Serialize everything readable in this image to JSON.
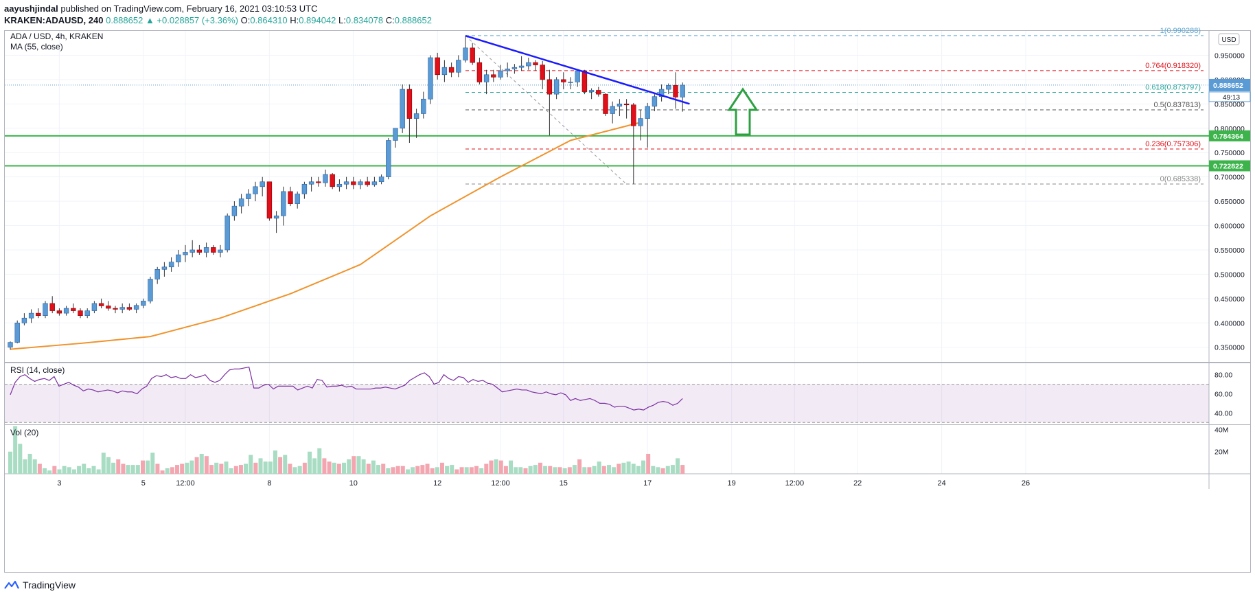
{
  "header": {
    "author": "aayushjindal",
    "published": "published on TradingView.com, February 16, 2021 03:10:53 UTC",
    "symbol": "KRAKEN:ADAUSD, 240",
    "last": "0.888652",
    "change": "▲ +0.028857 (+3.36%)",
    "o_label": "O:",
    "o": "0.864310",
    "h_label": "H:",
    "h": "0.894042",
    "l_label": "L:",
    "l": "0.834078",
    "c_label": "C:",
    "c": "0.888652"
  },
  "legend": {
    "pair": "ADA / USD, 4h, KRAKEN",
    "ma": "MA (55, close)",
    "rsi": "RSI (14, close)",
    "vol": "Vol (20)"
  },
  "currency_button": "USD",
  "footer": {
    "brand": "TradingView"
  },
  "colors": {
    "up": "#5b9bd5",
    "down": "#e0101a",
    "ma": "#f0932b",
    "trendline": "#1a1aff",
    "support": "#3cb44b",
    "rsi": "#7b2ea0",
    "vol_up": "#a8dcc3",
    "vol_down": "#f3a6b0",
    "arrow": "#2ea043"
  },
  "chart_data": {
    "type": "candlestick",
    "ylim": [
      0.32,
      1.0
    ],
    "y_ticks": [
      "0.350000",
      "0.400000",
      "0.450000",
      "0.500000",
      "0.550000",
      "0.600000",
      "0.650000",
      "0.700000",
      "0.750000",
      "0.800000",
      "0.850000",
      "0.900000",
      "0.950000"
    ],
    "price_label": "0.888652",
    "countdown": "49:13",
    "x_ticks": [
      {
        "i": 7,
        "label": "3"
      },
      {
        "i": 19,
        "label": "5"
      },
      {
        "i": 25,
        "label": "12:00"
      },
      {
        "i": 37,
        "label": "8"
      },
      {
        "i": 49,
        "label": "10"
      },
      {
        "i": 61,
        "label": "12"
      },
      {
        "i": 70,
        "label": "12:00"
      },
      {
        "i": 79,
        "label": "15"
      },
      {
        "i": 91,
        "label": "17"
      },
      {
        "i": 103,
        "label": "19"
      },
      {
        "i": 112,
        "label": "12:00"
      },
      {
        "i": 121,
        "label": "22"
      },
      {
        "i": 133,
        "label": "24"
      },
      {
        "i": 145,
        "label": "26"
      }
    ],
    "candles": [
      [
        0.35,
        0.362,
        0.345,
        0.36
      ],
      [
        0.36,
        0.405,
        0.358,
        0.4
      ],
      [
        0.4,
        0.42,
        0.395,
        0.41
      ],
      [
        0.41,
        0.428,
        0.4,
        0.42
      ],
      [
        0.42,
        0.43,
        0.41,
        0.415
      ],
      [
        0.415,
        0.445,
        0.41,
        0.44
      ],
      [
        0.44,
        0.455,
        0.42,
        0.425
      ],
      [
        0.425,
        0.43,
        0.415,
        0.42
      ],
      [
        0.42,
        0.435,
        0.415,
        0.43
      ],
      [
        0.43,
        0.44,
        0.42,
        0.425
      ],
      [
        0.425,
        0.43,
        0.41,
        0.415
      ],
      [
        0.415,
        0.43,
        0.41,
        0.425
      ],
      [
        0.425,
        0.445,
        0.42,
        0.44
      ],
      [
        0.44,
        0.45,
        0.43,
        0.435
      ],
      [
        0.435,
        0.445,
        0.425,
        0.43
      ],
      [
        0.43,
        0.435,
        0.42,
        0.428
      ],
      [
        0.428,
        0.44,
        0.42,
        0.432
      ],
      [
        0.432,
        0.44,
        0.425,
        0.428
      ],
      [
        0.428,
        0.44,
        0.42,
        0.436
      ],
      [
        0.436,
        0.45,
        0.43,
        0.445
      ],
      [
        0.445,
        0.495,
        0.44,
        0.49
      ],
      [
        0.49,
        0.515,
        0.48,
        0.51
      ],
      [
        0.51,
        0.525,
        0.495,
        0.515
      ],
      [
        0.515,
        0.535,
        0.505,
        0.525
      ],
      [
        0.525,
        0.55,
        0.515,
        0.54
      ],
      [
        0.54,
        0.56,
        0.525,
        0.545
      ],
      [
        0.545,
        0.57,
        0.535,
        0.55
      ],
      [
        0.55,
        0.56,
        0.54,
        0.545
      ],
      [
        0.545,
        0.565,
        0.535,
        0.555
      ],
      [
        0.555,
        0.56,
        0.54,
        0.545
      ],
      [
        0.545,
        0.56,
        0.535,
        0.55
      ],
      [
        0.55,
        0.625,
        0.545,
        0.62
      ],
      [
        0.62,
        0.65,
        0.61,
        0.64
      ],
      [
        0.64,
        0.665,
        0.625,
        0.655
      ],
      [
        0.655,
        0.675,
        0.64,
        0.665
      ],
      [
        0.665,
        0.69,
        0.65,
        0.68
      ],
      [
        0.68,
        0.7,
        0.66,
        0.69
      ],
      [
        0.69,
        0.69,
        0.61,
        0.615
      ],
      [
        0.615,
        0.63,
        0.585,
        0.62
      ],
      [
        0.62,
        0.68,
        0.6,
        0.67
      ],
      [
        0.67,
        0.68,
        0.64,
        0.645
      ],
      [
        0.645,
        0.67,
        0.635,
        0.665
      ],
      [
        0.665,
        0.69,
        0.655,
        0.685
      ],
      [
        0.685,
        0.7,
        0.67,
        0.69
      ],
      [
        0.69,
        0.7,
        0.68,
        0.688
      ],
      [
        0.688,
        0.715,
        0.68,
        0.705
      ],
      [
        0.705,
        0.708,
        0.675,
        0.68
      ],
      [
        0.68,
        0.695,
        0.67,
        0.685
      ],
      [
        0.685,
        0.7,
        0.675,
        0.69
      ],
      [
        0.69,
        0.7,
        0.675,
        0.684
      ],
      [
        0.684,
        0.695,
        0.675,
        0.69
      ],
      [
        0.69,
        0.7,
        0.68,
        0.684
      ],
      [
        0.684,
        0.7,
        0.68,
        0.69
      ],
      [
        0.69,
        0.705,
        0.685,
        0.7
      ],
      [
        0.7,
        0.78,
        0.695,
        0.775
      ],
      [
        0.775,
        0.8,
        0.76,
        0.8
      ],
      [
        0.8,
        0.89,
        0.79,
        0.88
      ],
      [
        0.88,
        0.89,
        0.77,
        0.82
      ],
      [
        0.82,
        0.84,
        0.78,
        0.83
      ],
      [
        0.83,
        0.875,
        0.82,
        0.86
      ],
      [
        0.86,
        0.95,
        0.85,
        0.945
      ],
      [
        0.945,
        0.955,
        0.9,
        0.91
      ],
      [
        0.91,
        0.94,
        0.895,
        0.925
      ],
      [
        0.925,
        0.935,
        0.905,
        0.915
      ],
      [
        0.915,
        0.95,
        0.905,
        0.94
      ],
      [
        0.94,
        0.99,
        0.935,
        0.965
      ],
      [
        0.965,
        0.975,
        0.93,
        0.935
      ],
      [
        0.935,
        0.945,
        0.89,
        0.895
      ],
      [
        0.895,
        0.92,
        0.87,
        0.91
      ],
      [
        0.91,
        0.92,
        0.895,
        0.905
      ],
      [
        0.905,
        0.93,
        0.9,
        0.918
      ],
      [
        0.918,
        0.935,
        0.905,
        0.922
      ],
      [
        0.922,
        0.932,
        0.912,
        0.925
      ],
      [
        0.925,
        0.948,
        0.918,
        0.928
      ],
      [
        0.928,
        0.945,
        0.92,
        0.935
      ],
      [
        0.935,
        0.94,
        0.918,
        0.93
      ],
      [
        0.93,
        0.938,
        0.88,
        0.9
      ],
      [
        0.9,
        0.92,
        0.785,
        0.87
      ],
      [
        0.87,
        0.905,
        0.86,
        0.9
      ],
      [
        0.9,
        0.915,
        0.88,
        0.895
      ],
      [
        0.895,
        0.905,
        0.88,
        0.895
      ],
      [
        0.895,
        0.92,
        0.885,
        0.918
      ],
      [
        0.918,
        0.92,
        0.87,
        0.875
      ],
      [
        0.875,
        0.882,
        0.86,
        0.878
      ],
      [
        0.878,
        0.885,
        0.865,
        0.87
      ],
      [
        0.87,
        0.872,
        0.825,
        0.83
      ],
      [
        0.83,
        0.855,
        0.81,
        0.845
      ],
      [
        0.845,
        0.86,
        0.825,
        0.85
      ],
      [
        0.85,
        0.86,
        0.82,
        0.848
      ],
      [
        0.848,
        0.852,
        0.685,
        0.805
      ],
      [
        0.805,
        0.838,
        0.775,
        0.82
      ],
      [
        0.82,
        0.852,
        0.76,
        0.845
      ],
      [
        0.845,
        0.87,
        0.835,
        0.865
      ],
      [
        0.865,
        0.89,
        0.855,
        0.88
      ],
      [
        0.88,
        0.892,
        0.87,
        0.888
      ],
      [
        0.888,
        0.915,
        0.84,
        0.864
      ],
      [
        0.864,
        0.894,
        0.834,
        0.888652
      ]
    ],
    "ma_points": [
      [
        0,
        0.346
      ],
      [
        10,
        0.358
      ],
      [
        20,
        0.372
      ],
      [
        30,
        0.41
      ],
      [
        40,
        0.46
      ],
      [
        50,
        0.52
      ],
      [
        60,
        0.62
      ],
      [
        70,
        0.7
      ],
      [
        80,
        0.775
      ],
      [
        90,
        0.812
      ]
    ],
    "trendline": [
      [
        65,
        0.99
      ],
      [
        97,
        0.85
      ]
    ],
    "fib_diagonal": [
      [
        65,
        0.99
      ],
      [
        88,
        0.685
      ]
    ],
    "support_levels": [
      {
        "value": 0.784364,
        "label": "0.784364"
      },
      {
        "value": 0.722822,
        "label": "0.722822"
      }
    ],
    "fibonacci": [
      {
        "value": 0.990288,
        "label": "1(0.990288)",
        "color": "#5fa8d3"
      },
      {
        "value": 0.91832,
        "label": "0.764(0.918320)",
        "color": "#e0101a"
      },
      {
        "value": 0.873797,
        "label": "0.618(0.873797)",
        "color": "#26a69a"
      },
      {
        "value": 0.837813,
        "label": "0.5(0.837813)",
        "color": "#555555"
      },
      {
        "value": 0.757306,
        "label": "0.236(0.757306)",
        "color": "#e0101a"
      },
      {
        "value": 0.685338,
        "label": "0(0.685338)",
        "color": "#888888"
      }
    ],
    "rsi": {
      "ylim": [
        28,
        92
      ],
      "ticks": [
        "40.00",
        "60.00",
        "80.00"
      ],
      "band": [
        30,
        70
      ],
      "values": [
        59,
        72,
        78,
        80,
        76,
        73,
        75,
        76,
        74,
        78,
        68,
        70,
        72,
        69,
        67,
        63,
        65,
        64,
        62,
        63,
        64,
        63,
        61,
        63,
        62,
        62,
        60,
        65,
        68,
        76,
        79,
        78,
        80,
        77,
        78,
        76,
        76,
        80,
        77,
        78,
        80,
        74,
        72,
        74,
        80,
        85,
        86,
        86,
        87,
        88,
        66,
        66,
        69,
        70,
        65,
        68,
        68,
        68,
        68,
        64,
        66,
        68,
        66,
        75,
        74,
        67,
        68,
        68,
        69,
        67,
        68,
        65,
        65,
        65,
        65,
        66,
        66,
        67,
        66,
        65,
        67,
        69,
        74,
        77,
        80,
        82,
        78,
        70,
        72,
        80,
        76,
        74,
        78,
        77,
        72,
        75,
        73,
        74,
        71,
        70,
        66,
        62,
        63,
        64,
        65,
        64,
        64,
        62,
        61,
        60,
        62,
        60,
        59,
        61,
        59,
        53,
        55,
        53,
        54,
        55,
        53,
        50,
        50,
        49,
        46,
        47,
        47,
        45,
        43,
        44,
        43,
        46,
        48,
        51,
        52,
        51,
        48,
        50,
        55
      ]
    },
    "volume": {
      "ylim": [
        0,
        44
      ],
      "ticks": [
        "20M",
        "40M"
      ],
      "bars": [
        20,
        43,
        27,
        13,
        18,
        13,
        9,
        5,
        3,
        7,
        4,
        7,
        6,
        4,
        7,
        9,
        5,
        7,
        4,
        19,
        15,
        10,
        13,
        9,
        8,
        8,
        8,
        12,
        12,
        19,
        9,
        3,
        5,
        6,
        8,
        9,
        10,
        12,
        15,
        18,
        16,
        8,
        10,
        9,
        11,
        5,
        7,
        8,
        9,
        17,
        10,
        14,
        11,
        11,
        21,
        15,
        17,
        9,
        6,
        7,
        10,
        20,
        14,
        23,
        14,
        11,
        10,
        9,
        10,
        13,
        16,
        16,
        13,
        9,
        12,
        8,
        9,
        5,
        6,
        7,
        7,
        4,
        6,
        7,
        8,
        9,
        5,
        6,
        10,
        7,
        8,
        4,
        6,
        6,
        6,
        7,
        5,
        9,
        12,
        13,
        12,
        7,
        12,
        6,
        6,
        5,
        7,
        8,
        10,
        7,
        7,
        6,
        6,
        5,
        6,
        8,
        13,
        6,
        6,
        7,
        11,
        7,
        8,
        6,
        9,
        10,
        11,
        9,
        7,
        12,
        18,
        7,
        6,
        5,
        7,
        8,
        14,
        8
      ],
      "down": [
        6,
        9,
        22,
        23,
        27,
        30,
        31,
        33,
        34,
        35,
        38,
        40,
        41,
        43,
        46,
        47,
        50,
        55,
        57,
        60,
        64,
        65,
        67,
        70,
        73,
        76,
        78,
        79,
        80,
        83,
        84,
        85,
        86,
        88,
        91,
        92,
        94,
        95,
        97,
        98,
        100,
        101,
        105,
        108,
        110,
        112,
        114,
        116,
        118,
        121,
        124,
        130,
        133,
        137,
        139
      ]
    },
    "price_xticks_note": ""
  }
}
